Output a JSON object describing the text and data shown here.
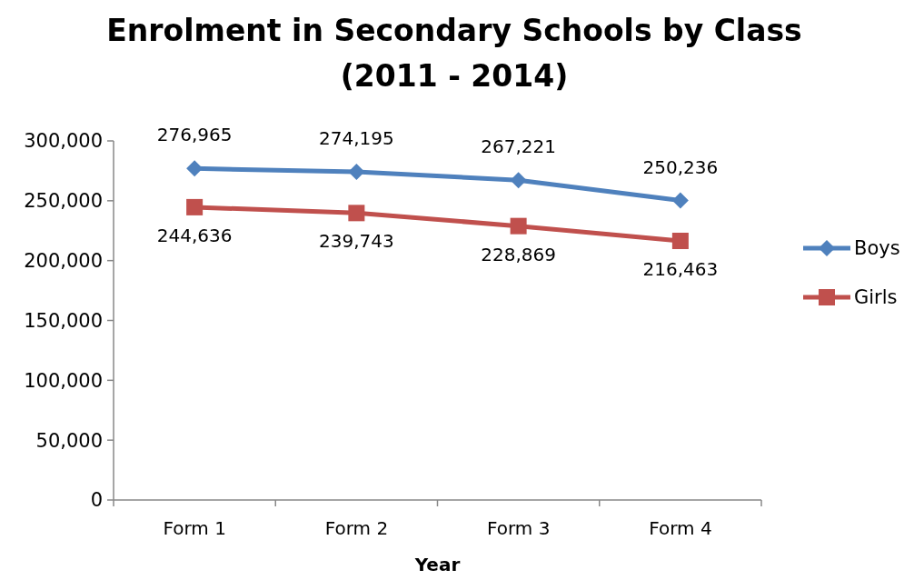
{
  "chart_data": {
    "type": "line",
    "title": "Enrolment in Secondary Schools by Class\n(2011 - 2014)",
    "xlabel": "Year",
    "categories": [
      "Form 1",
      "Form 2",
      "Form 3",
      "Form 4"
    ],
    "series": [
      {
        "name": "Boys",
        "color": "#4f81bd",
        "marker": "diamond",
        "values": [
          276965,
          274195,
          267221,
          250236
        ],
        "value_labels": [
          "276,965",
          "274,195",
          "267,221",
          "250,236"
        ]
      },
      {
        "name": "Girls",
        "color": "#c0504d",
        "marker": "square",
        "values": [
          244636,
          239743,
          228869,
          216463
        ],
        "value_labels": [
          "244,636",
          "239,743",
          "228,869",
          "216,463"
        ]
      }
    ],
    "ylim": [
      0,
      300000
    ],
    "yticks": [
      {
        "value": 0,
        "label": "0"
      },
      {
        "value": 50000,
        "label": "50,000"
      },
      {
        "value": 100000,
        "label": "100,000"
      },
      {
        "value": 150000,
        "label": "150,000"
      },
      {
        "value": 200000,
        "label": "200,000"
      },
      {
        "value": 250000,
        "label": "250,000"
      },
      {
        "value": 300000,
        "label": "300,000"
      }
    ],
    "legend": "right",
    "grid": false
  }
}
